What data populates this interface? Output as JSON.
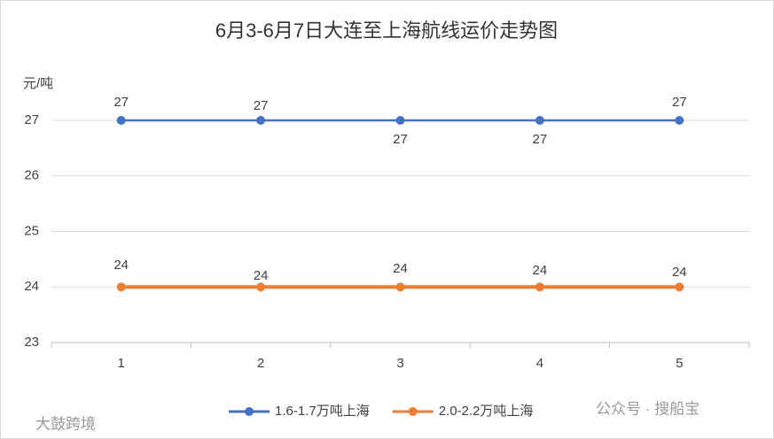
{
  "chart_data": {
    "type": "line",
    "title": "6月3-6月7日大连至上海航线运价走势图",
    "y_label": "元/吨",
    "categories": [
      "1",
      "2",
      "3",
      "4",
      "5"
    ],
    "series": [
      {
        "name": "1.6-1.7万吨上海",
        "color": "#4472c4",
        "values": [
          27,
          27,
          27,
          27,
          27
        ]
      },
      {
        "name": "2.0-2.2万吨上海",
        "color": "#ed7d31",
        "values": [
          24,
          24,
          24,
          24,
          24
        ]
      }
    ],
    "ylim": [
      23,
      27
    ],
    "yticks": [
      23,
      24,
      25,
      26,
      27
    ],
    "grid": true,
    "legend": "bottom"
  },
  "watermarks": [
    "大鼓跨境",
    "公众号 · 搜船宝"
  ]
}
